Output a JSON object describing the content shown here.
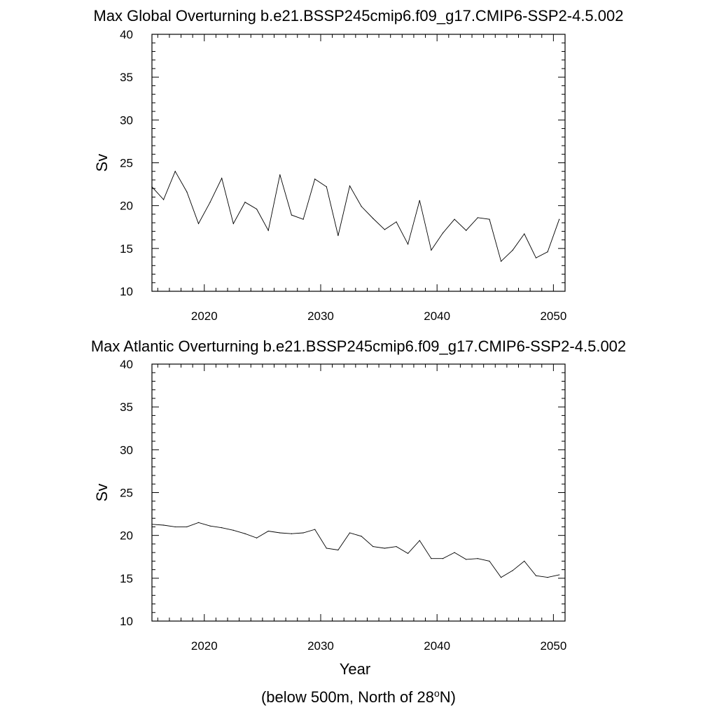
{
  "chart_data": [
    {
      "type": "line",
      "title": "Max Global Overturning b.e21.BSSP245cmip6.f09_g17.CMIP6-SSP2-4.5.002",
      "xlabel": "",
      "ylabel": "Sv",
      "xlim": [
        2015.5,
        2051
      ],
      "ylim": [
        10,
        40
      ],
      "xticks": [
        2020,
        2030,
        2040,
        2050
      ],
      "yticks": [
        10,
        15,
        20,
        25,
        30,
        35,
        40
      ],
      "grid": false,
      "series": [
        {
          "x": [
            2015.5,
            2016.5,
            2017.5,
            2018.5,
            2019.5,
            2020.5,
            2021.5,
            2022.5,
            2023.5,
            2024.5,
            2025.5,
            2026.5,
            2027.5,
            2028.5,
            2029.5,
            2030.5,
            2031.5,
            2032.5,
            2033.5,
            2034.5,
            2035.5,
            2036.5,
            2037.5,
            2038.5,
            2039.5,
            2040.5,
            2041.5,
            2042.5,
            2043.5,
            2044.5,
            2045.5,
            2046.5,
            2047.5,
            2048.5,
            2049.5,
            2050.5
          ],
          "y": [
            22.2,
            20.7,
            24.0,
            21.6,
            17.9,
            20.4,
            23.2,
            17.9,
            20.4,
            19.6,
            17.1,
            23.6,
            18.9,
            18.4,
            23.1,
            22.2,
            16.5,
            22.3,
            19.9,
            18.5,
            17.2,
            18.1,
            15.5,
            20.6,
            14.8,
            16.8,
            18.4,
            17.1,
            18.6,
            18.4,
            13.5,
            14.8,
            16.7,
            13.9,
            14.6,
            18.4
          ]
        }
      ]
    },
    {
      "type": "line",
      "title": "Max Atlantic Overturning b.e21.BSSP245cmip6.f09_g17.CMIP6-SSP2-4.5.002",
      "xlabel": "Year",
      "ylabel": "Sv",
      "xlim": [
        2015.5,
        2051
      ],
      "ylim": [
        10,
        40
      ],
      "xticks": [
        2020,
        2030,
        2040,
        2050
      ],
      "yticks": [
        10,
        15,
        20,
        25,
        30,
        35,
        40
      ],
      "grid": false,
      "series": [
        {
          "x": [
            2015.5,
            2016.5,
            2017.5,
            2018.5,
            2019.5,
            2020.5,
            2021.5,
            2022.5,
            2023.5,
            2024.5,
            2025.5,
            2026.5,
            2027.5,
            2028.5,
            2029.5,
            2030.5,
            2031.5,
            2032.5,
            2033.5,
            2034.5,
            2035.5,
            2036.5,
            2037.5,
            2038.5,
            2039.5,
            2040.5,
            2041.5,
            2042.5,
            2043.5,
            2044.5,
            2045.5,
            2046.5,
            2047.5,
            2048.5,
            2049.5,
            2050.5
          ],
          "y": [
            21.3,
            21.2,
            21.0,
            21.0,
            21.5,
            21.1,
            20.9,
            20.6,
            20.2,
            19.7,
            20.5,
            20.3,
            20.2,
            20.3,
            20.7,
            18.5,
            18.3,
            20.3,
            19.9,
            18.7,
            18.5,
            18.7,
            17.9,
            19.4,
            17.3,
            17.3,
            18.0,
            17.2,
            17.3,
            17.0,
            15.1,
            15.9,
            17.0,
            15.3,
            15.1,
            15.4
          ]
        }
      ]
    }
  ],
  "footnote": {
    "prefix": "(below 500m, North of 28",
    "degree_mark": "o",
    "suffix": "N)"
  }
}
